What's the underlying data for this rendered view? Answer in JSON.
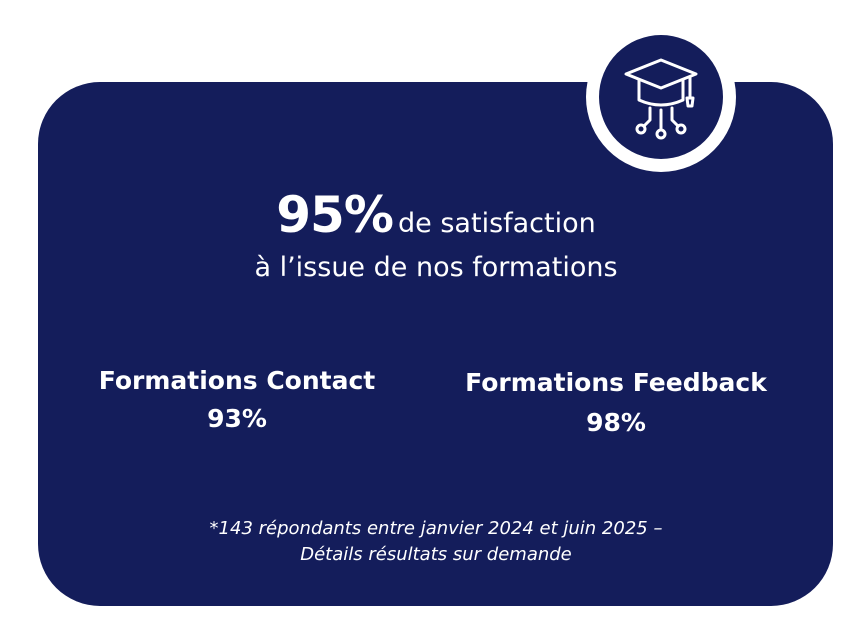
{
  "headline": {
    "value": "95%",
    "text": "de satisfaction",
    "line2": "à l’issue de nos formations"
  },
  "stats": [
    {
      "label": "Formations Contact",
      "value": "93%"
    },
    {
      "label": "Formations Feedback",
      "value": "98%"
    }
  ],
  "footnote": {
    "line1": "*143 répondants entre janvier 2024 et juin 2025 –",
    "line2": "Détails résultats sur demande"
  }
}
